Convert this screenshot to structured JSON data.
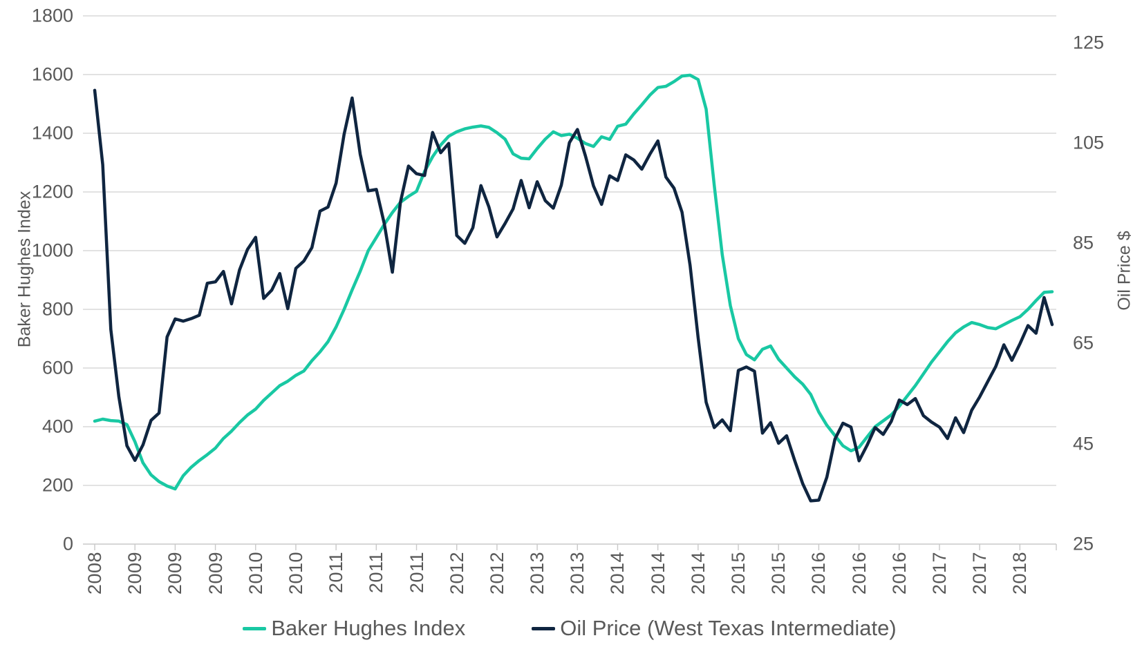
{
  "chart_data": {
    "type": "line",
    "title": "",
    "x_tick_labels": [
      "2008",
      "2009",
      "2009",
      "2009",
      "2010",
      "2010",
      "2011",
      "2011",
      "2011",
      "2012",
      "2012",
      "2013",
      "2013",
      "2014",
      "2014",
      "2014",
      "2015",
      "2015",
      "2016",
      "2016",
      "2016",
      "2017",
      "2017",
      "2018"
    ],
    "x_granularity": "monthly, Aug 2008 - Jul 2018, tick every 5 months",
    "left_axis": {
      "title": "Baker Hughes Index",
      "min": 0,
      "max": 1800,
      "tick_labels": [
        "0",
        "200",
        "400",
        "600",
        "800",
        "1000",
        "1200",
        "1400",
        "1600",
        "1800"
      ]
    },
    "right_axis": {
      "title": "Oil Price $",
      "min": 25,
      "max": 130,
      "tick_labels": [
        "25",
        "45",
        "65",
        "85",
        "105",
        "125"
      ]
    },
    "grid": "horizontal only",
    "legend_position": "bottom center",
    "series": [
      {
        "name": "Baker Hughes Index",
        "axis": "left",
        "color": "#19C8A3",
        "values": [
          419,
          426,
          421,
          419,
          407,
          349,
          277,
          236,
          213,
          198,
          188,
          233,
          262,
          285,
          305,
          327,
          360,
          385,
          414,
          440,
          460,
          490,
          515,
          540,
          555,
          575,
          590,
          625,
          655,
          690,
          740,
          800,
          866,
          930,
          1000,
          1045,
          1090,
          1130,
          1165,
          1185,
          1202,
          1270,
          1320,
          1360,
          1390,
          1405,
          1415,
          1421,
          1425,
          1420,
          1402,
          1380,
          1330,
          1315,
          1313,
          1348,
          1380,
          1405,
          1392,
          1397,
          1383,
          1365,
          1355,
          1388,
          1379,
          1424,
          1431,
          1466,
          1497,
          1530,
          1556,
          1560,
          1576,
          1595,
          1598,
          1583,
          1482,
          1223,
          986,
          813,
          700,
          646,
          628,
          664,
          675,
          630,
          600,
          570,
          545,
          510,
          450,
          405,
          370,
          335,
          318,
          330,
          365,
          400,
          420,
          440,
          470,
          505,
          540,
          580,
          620,
          655,
          690,
          720,
          740,
          755,
          748,
          738,
          734,
          748,
          762,
          775,
          800,
          830,
          858,
          860
        ]
      },
      {
        "name": "Oil Price (West Texas Intermediate)",
        "axis": "right",
        "color": "#0F2540",
        "values": [
          115.46,
          100.64,
          67.81,
          54.43,
          44.6,
          41.68,
          44.76,
          49.66,
          51.12,
          66.31,
          69.89,
          69.45,
          69.96,
          70.61,
          77.0,
          77.28,
          79.36,
          72.89,
          79.66,
          83.76,
          86.15,
          73.97,
          75.63,
          78.95,
          71.92,
          79.97,
          81.43,
          84.11,
          91.38,
          92.19,
          96.97,
          106.72,
          113.93,
          102.7,
          95.42,
          95.7,
          88.81,
          79.2,
          93.19,
          100.36,
          98.83,
          98.48,
          107.07,
          103.02,
          104.87,
          86.53,
          84.96,
          88.06,
          96.47,
          92.19,
          86.24,
          88.91,
          91.82,
          97.49,
          92.05,
          97.23,
          93.46,
          91.97,
          96.56,
          105.03,
          107.65,
          102.33,
          96.38,
          92.72,
          98.42,
          97.49,
          102.59,
          101.58,
          99.74,
          102.71,
          105.37,
          98.17,
          95.96,
          91.16,
          80.54,
          66.15,
          53.27,
          48.24,
          49.76,
          47.6,
          59.63,
          60.3,
          59.47,
          47.12,
          49.2,
          45.09,
          46.59,
          41.65,
          37.04,
          33.62,
          33.75,
          38.34,
          45.92,
          49.1,
          48.33,
          41.6,
          44.7,
          48.24,
          46.86,
          49.44,
          53.72,
          52.81,
          54.01,
          50.6,
          49.33,
          48.32,
          46.04,
          50.17,
          47.23,
          51.67,
          54.38,
          57.4,
          60.42,
          64.73,
          61.64,
          64.94,
          68.57,
          67.04,
          74.15,
          68.76
        ]
      }
    ],
    "colors": {
      "gridline": "#D9D9D9",
      "axis_line": "#C8C8C8",
      "label_text": "#595959"
    }
  }
}
